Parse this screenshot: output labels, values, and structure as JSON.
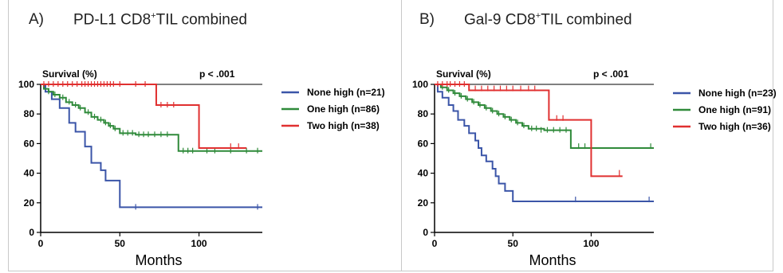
{
  "chart_data": [
    {
      "type": "line",
      "subtype": "kaplan-meier",
      "panel_letter": "A)",
      "title_main": "PD-L1 CD8",
      "title_sup": "+",
      "title_rest": "TIL combined",
      "ylabel": "Survival (%)",
      "xlabel": "Months",
      "pvalue": "p < .001",
      "xlim": [
        0,
        140
      ],
      "ylim": [
        0,
        100
      ],
      "xticks": [
        0,
        50,
        100
      ],
      "yticks": [
        0,
        20,
        40,
        60,
        80,
        100
      ],
      "grid": false,
      "legend_position": "right",
      "series": [
        {
          "name": "None high (n=21)",
          "color": "#3b55a8",
          "steps": [
            [
              0,
              100
            ],
            [
              3,
              95
            ],
            [
              7,
              90
            ],
            [
              12,
              84
            ],
            [
              18,
              74
            ],
            [
              22,
              68
            ],
            [
              28,
              58
            ],
            [
              32,
              47
            ],
            [
              38,
              42
            ],
            [
              41,
              35
            ],
            [
              50,
              17
            ],
            [
              140,
              17
            ]
          ],
          "censored": [
            [
              60,
              17
            ],
            [
              137,
              17
            ]
          ]
        },
        {
          "name": "One high (n=86)",
          "color": "#2f8a3a",
          "steps": [
            [
              0,
              100
            ],
            [
              2,
              97
            ],
            [
              5,
              95
            ],
            [
              8,
              93
            ],
            [
              12,
              91
            ],
            [
              16,
              88
            ],
            [
              20,
              86
            ],
            [
              24,
              84
            ],
            [
              28,
              81
            ],
            [
              32,
              78
            ],
            [
              36,
              76
            ],
            [
              40,
              74
            ],
            [
              43,
              72
            ],
            [
              46,
              70
            ],
            [
              50,
              67
            ],
            [
              60,
              66
            ],
            [
              87,
              55
            ],
            [
              140,
              55
            ]
          ],
          "censored": [
            [
              5,
              95
            ],
            [
              9,
              93
            ],
            [
              14,
              91
            ],
            [
              18,
              88
            ],
            [
              22,
              86
            ],
            [
              25,
              84
            ],
            [
              30,
              81
            ],
            [
              34,
              78
            ],
            [
              38,
              76
            ],
            [
              41,
              74
            ],
            [
              44,
              72
            ],
            [
              47,
              70
            ],
            [
              52,
              67
            ],
            [
              55,
              67
            ],
            [
              58,
              67
            ],
            [
              62,
              66
            ],
            [
              65,
              66
            ],
            [
              68,
              66
            ],
            [
              72,
              66
            ],
            [
              76,
              66
            ],
            [
              80,
              66
            ],
            [
              90,
              55
            ],
            [
              93,
              55
            ],
            [
              96,
              55
            ],
            [
              105,
              55
            ],
            [
              110,
              55
            ],
            [
              120,
              55
            ],
            [
              130,
              55
            ],
            [
              137,
              55
            ]
          ]
        },
        {
          "name": "Two high (n=38)",
          "color": "#e03030",
          "steps": [
            [
              0,
              100
            ],
            [
              73,
              100
            ],
            [
              73,
              86
            ],
            [
              100,
              86
            ],
            [
              100,
              57
            ],
            [
              130,
              57
            ]
          ],
          "censored": [
            [
              2,
              100
            ],
            [
              5,
              100
            ],
            [
              8,
              100
            ],
            [
              11,
              100
            ],
            [
              14,
              100
            ],
            [
              17,
              100
            ],
            [
              20,
              100
            ],
            [
              23,
              100
            ],
            [
              26,
              100
            ],
            [
              28,
              100
            ],
            [
              30,
              100
            ],
            [
              32,
              100
            ],
            [
              34,
              100
            ],
            [
              36,
              100
            ],
            [
              38,
              100
            ],
            [
              40,
              100
            ],
            [
              42,
              100
            ],
            [
              44,
              100
            ],
            [
              46,
              100
            ],
            [
              50,
              100
            ],
            [
              60,
              100
            ],
            [
              66,
              100
            ],
            [
              76,
              86
            ],
            [
              80,
              86
            ],
            [
              84,
              86
            ],
            [
              120,
              58
            ],
            [
              125,
              58
            ]
          ]
        }
      ]
    },
    {
      "type": "line",
      "subtype": "kaplan-meier",
      "panel_letter": "B)",
      "title_main": "Gal-9 CD8",
      "title_sup": "+",
      "title_rest": "TIL combined",
      "ylabel": "Survival (%)",
      "xlabel": "Months",
      "pvalue": "p < .001",
      "xlim": [
        0,
        140
      ],
      "ylim": [
        0,
        100
      ],
      "xticks": [
        0,
        50,
        100
      ],
      "yticks": [
        0,
        20,
        40,
        60,
        80,
        100
      ],
      "grid": false,
      "legend_position": "right",
      "series": [
        {
          "name": "None high (n=23)",
          "color": "#3b55a8",
          "steps": [
            [
              0,
              100
            ],
            [
              2,
              95
            ],
            [
              5,
              91
            ],
            [
              9,
              86
            ],
            [
              12,
              82
            ],
            [
              15,
              76
            ],
            [
              19,
              72
            ],
            [
              22,
              67
            ],
            [
              26,
              62
            ],
            [
              28,
              57
            ],
            [
              30,
              52
            ],
            [
              33,
              48
            ],
            [
              37,
              43
            ],
            [
              39,
              38
            ],
            [
              41,
              33
            ],
            [
              45,
              28
            ],
            [
              50,
              21
            ],
            [
              140,
              21
            ]
          ],
          "censored": [
            [
              90,
              22
            ],
            [
              137,
              22
            ]
          ]
        },
        {
          "name": "One high (n=91)",
          "color": "#2f8a3a",
          "steps": [
            [
              0,
              100
            ],
            [
              4,
              98
            ],
            [
              8,
              96
            ],
            [
              12,
              94
            ],
            [
              16,
              92
            ],
            [
              20,
              90
            ],
            [
              24,
              88
            ],
            [
              28,
              86
            ],
            [
              32,
              84
            ],
            [
              36,
              82
            ],
            [
              40,
              80
            ],
            [
              44,
              78
            ],
            [
              48,
              76
            ],
            [
              52,
              74
            ],
            [
              56,
              72
            ],
            [
              60,
              70
            ],
            [
              70,
              69
            ],
            [
              87,
              57
            ],
            [
              140,
              57
            ]
          ],
          "censored": [
            [
              5,
              98
            ],
            [
              9,
              96
            ],
            [
              13,
              94
            ],
            [
              17,
              92
            ],
            [
              21,
              90
            ],
            [
              25,
              88
            ],
            [
              29,
              86
            ],
            [
              33,
              84
            ],
            [
              37,
              82
            ],
            [
              41,
              80
            ],
            [
              45,
              78
            ],
            [
              49,
              76
            ],
            [
              53,
              74
            ],
            [
              57,
              72
            ],
            [
              62,
              70
            ],
            [
              65,
              70
            ],
            [
              68,
              69
            ],
            [
              72,
              69
            ],
            [
              76,
              69
            ],
            [
              80,
              69
            ],
            [
              84,
              69
            ],
            [
              92,
              58
            ],
            [
              96,
              58
            ],
            [
              138,
              58
            ]
          ]
        },
        {
          "name": "Two high (n=36)",
          "color": "#e03030",
          "steps": [
            [
              0,
              100
            ],
            [
              22,
              100
            ],
            [
              22,
              96
            ],
            [
              73,
              96
            ],
            [
              73,
              76
            ],
            [
              100,
              76
            ],
            [
              100,
              38
            ],
            [
              120,
              38
            ]
          ],
          "censored": [
            [
              2,
              100
            ],
            [
              5,
              100
            ],
            [
              8,
              100
            ],
            [
              10,
              100
            ],
            [
              13,
              100
            ],
            [
              16,
              100
            ],
            [
              19,
              100
            ],
            [
              26,
              97
            ],
            [
              30,
              97
            ],
            [
              34,
              97
            ],
            [
              38,
              97
            ],
            [
              42,
              97
            ],
            [
              46,
              97
            ],
            [
              50,
              97
            ],
            [
              55,
              97
            ],
            [
              60,
              97
            ],
            [
              64,
              97
            ],
            [
              78,
              77
            ],
            [
              82,
              77
            ],
            [
              118,
              40
            ]
          ]
        }
      ]
    }
  ]
}
